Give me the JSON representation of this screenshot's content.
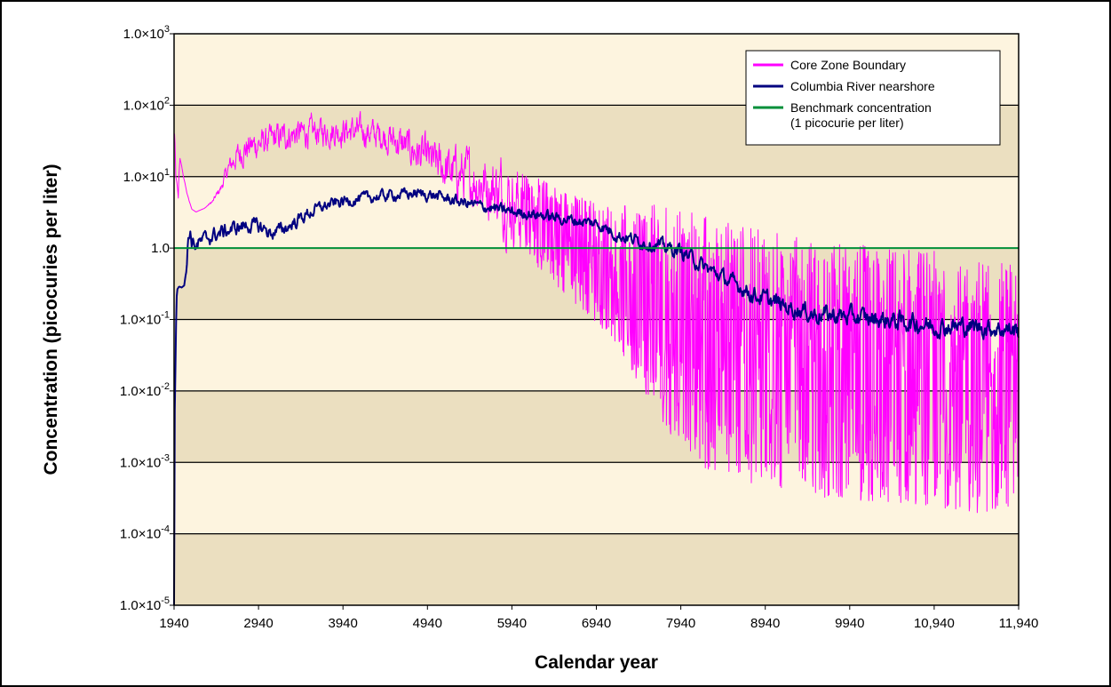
{
  "chart_data": {
    "type": "line",
    "title": "",
    "xlabel": "Calendar year",
    "ylabel": "Concentration (picocuries per liter)",
    "x_scale": "linear",
    "y_scale": "log",
    "xlim": [
      1940,
      11940
    ],
    "ylim": [
      1e-05,
      1000
    ],
    "x_ticks": [
      1940,
      2940,
      3940,
      4940,
      5940,
      6940,
      7940,
      8940,
      9940,
      10940,
      11940
    ],
    "x_tick_labels": [
      "1940",
      "2940",
      "3940",
      "4940",
      "5940",
      "6940",
      "7940",
      "8940",
      "9940",
      "10,940",
      "11,940"
    ],
    "y_ticks": [
      1e-05,
      0.0001,
      0.001,
      0.01,
      0.1,
      1,
      10,
      100,
      1000
    ],
    "y_tick_labels": [
      {
        "mant": "1.0×10",
        "exp": "-5"
      },
      {
        "mant": "1.0×10",
        "exp": "-4"
      },
      {
        "mant": "1.0×10",
        "exp": "-3"
      },
      {
        "mant": "1.0×10",
        "exp": "-2"
      },
      {
        "mant": "1.0×10",
        "exp": "-1"
      },
      {
        "mant": "1.0",
        "exp": ""
      },
      {
        "mant": "1.0×10",
        "exp": "1"
      },
      {
        "mant": "1.0×10",
        "exp": "2"
      },
      {
        "mant": "1.0×10",
        "exp": "3"
      }
    ],
    "grid": "horizontal major gridlines",
    "band_colors": [
      "#ebdfc0",
      "#fdf4df"
    ],
    "legend_position": "top-right",
    "series": [
      {
        "name": "Core Zone Boundary",
        "color": "#ff00ff",
        "x": [
          1945,
          1960,
          1975,
          1990,
          2010,
          2050,
          2090,
          2120,
          2150,
          2200,
          2250,
          2300,
          2400,
          2500,
          2600,
          2700,
          2800,
          2900,
          3000,
          3200,
          3400,
          3600,
          3800,
          4000,
          4200,
          4400,
          4600,
          4800,
          5000,
          5200,
          5400,
          5600,
          5800,
          6000,
          6200,
          6400,
          6600,
          6800,
          7000,
          7200,
          7400,
          7600,
          7800,
          8000,
          8200,
          8400,
          8600,
          8800,
          9000,
          9200,
          9400,
          9600,
          9800,
          10000,
          10200,
          10400,
          10600,
          10800,
          11000,
          11200,
          11400,
          11600,
          11800,
          11940
        ],
        "y": [
          40,
          10,
          8,
          5,
          18,
          10,
          6,
          4.5,
          3.5,
          3.2,
          3.4,
          3.6,
          4.5,
          7,
          14,
          20,
          25,
          28,
          30,
          36,
          40,
          42,
          43,
          44,
          42,
          38,
          30,
          22,
          16,
          12,
          10,
          8,
          6,
          4,
          2.5,
          1.6,
          1.1,
          0.8,
          0.55,
          0.4,
          0.25,
          0.16,
          0.1,
          0.07,
          0.05,
          0.04,
          0.035,
          0.03,
          0.028,
          0.025,
          0.022,
          0.02,
          0.019,
          0.018,
          0.017,
          0.016,
          0.015,
          0.015,
          0.014,
          0.013,
          0.012,
          0.011,
          0.01,
          0.01
        ],
        "noise_decades": [
          0,
          0,
          0,
          0,
          0,
          0,
          0,
          0,
          0,
          0,
          0,
          0,
          0.02,
          0.05,
          0.1,
          0.14,
          0.15,
          0.15,
          0.15,
          0.15,
          0.15,
          0.15,
          0.15,
          0.15,
          0.15,
          0.15,
          0.18,
          0.2,
          0.22,
          0.25,
          0.28,
          0.32,
          0.38,
          0.45,
          0.6,
          0.7,
          0.75,
          0.8,
          0.9,
          1.0,
          1.2,
          1.4,
          1.6,
          1.7,
          1.8,
          1.8,
          1.8,
          1.8,
          1.8,
          1.8,
          1.8,
          1.8,
          1.8,
          1.8,
          1.8,
          1.8,
          1.8,
          1.8,
          1.8,
          1.8,
          1.8,
          1.8,
          1.8,
          1.8
        ]
      },
      {
        "name": "Columbia River nearshore",
        "color": "#000080",
        "x": [
          1940,
          1955,
          1965,
          1975,
          2000,
          2030,
          2060,
          2090,
          2110,
          2130,
          2150,
          2200,
          2300,
          2400,
          2600,
          2800,
          2940,
          3100,
          3300,
          3500,
          3700,
          3940,
          4200,
          4500,
          4800,
          5000,
          5300,
          5600,
          5940,
          6200,
          6500,
          6940,
          7200,
          7500,
          7940,
          8200,
          8500,
          8800,
          9200,
          9500,
          9940,
          10300,
          10700,
          10940,
          11300,
          11700,
          11940
        ],
        "y": [
          1e-05,
          0.01,
          0.1,
          0.26,
          0.29,
          0.28,
          0.3,
          0.5,
          1.5,
          1.7,
          1.2,
          1.1,
          1.3,
          1.5,
          1.8,
          2.1,
          2.0,
          1.6,
          2.0,
          2.9,
          3.8,
          4.5,
          5.0,
          5.5,
          5.8,
          5.5,
          4.5,
          3.8,
          3.2,
          3.0,
          2.6,
          2.2,
          1.5,
          1.2,
          0.9,
          0.55,
          0.35,
          0.22,
          0.15,
          0.12,
          0.11,
          0.1,
          0.09,
          0.08,
          0.08,
          0.075,
          0.07
        ],
        "noise_decades": [
          0,
          0,
          0,
          0,
          0,
          0,
          0,
          0,
          0.06,
          0.08,
          0.08,
          0.08,
          0.08,
          0.08,
          0.08,
          0.08,
          0.08,
          0.07,
          0.07,
          0.07,
          0.06,
          0.06,
          0.06,
          0.06,
          0.06,
          0.06,
          0.06,
          0.06,
          0.06,
          0.06,
          0.06,
          0.06,
          0.07,
          0.07,
          0.08,
          0.08,
          0.08,
          0.09,
          0.09,
          0.1,
          0.1,
          0.1,
          0.1,
          0.1,
          0.1,
          0.1,
          0.1
        ]
      },
      {
        "name": "Benchmark concentration",
        "name_line2": "(1 picocurie per liter)",
        "color": "#008f39",
        "x": [
          1940,
          11940
        ],
        "y": [
          1,
          1
        ],
        "noise_decades": [
          0,
          0
        ]
      }
    ]
  }
}
